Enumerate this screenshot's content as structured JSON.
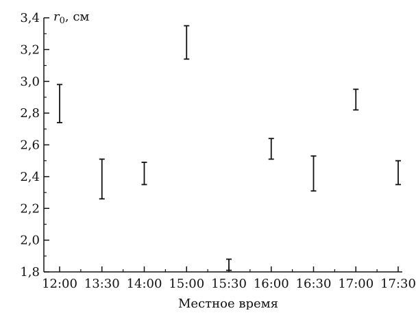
{
  "chart_data": {
    "type": "errorbar",
    "title": "",
    "xlabel": "Местное время",
    "ylabel": {
      "symbol": "r",
      "subscript": "0",
      "unit": ", см"
    },
    "categories": [
      "12:00",
      "13:30",
      "14:00",
      "15:00",
      "15:30",
      "16:00",
      "16:30",
      "17:00",
      "17:30"
    ],
    "lower": [
      2.74,
      2.26,
      2.35,
      3.14,
      1.81,
      2.51,
      2.31,
      2.82,
      2.35
    ],
    "upper": [
      2.98,
      2.51,
      2.49,
      3.35,
      1.88,
      2.64,
      2.53,
      2.95,
      2.5
    ],
    "ylim": [
      1.8,
      3.4
    ],
    "yticks": [
      1.8,
      2.0,
      2.2,
      2.4,
      2.6,
      2.8,
      3.0,
      3.2,
      3.4
    ],
    "ytick_labels": [
      "1,8",
      "2,0",
      "2,2",
      "2,4",
      "2,6",
      "2,8",
      "3,0",
      "3,2",
      "3,4"
    ],
    "grid": false,
    "legend": false
  }
}
